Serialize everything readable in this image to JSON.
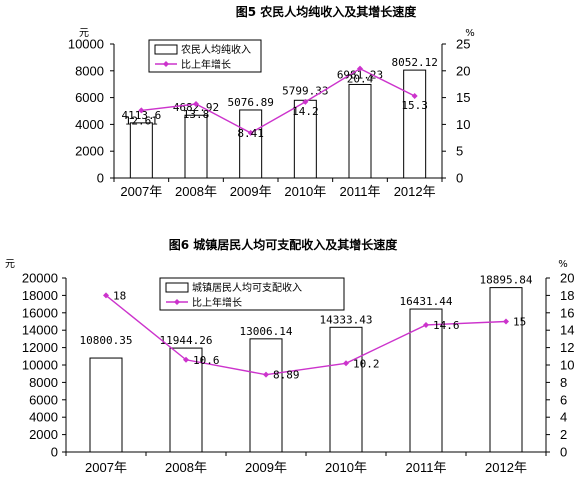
{
  "chart_data": [
    {
      "type": "bar",
      "title": "图5  农民人均纯收入及其增长速度",
      "y_unit": "元",
      "y2_unit": "%",
      "categories": [
        "2007年",
        "2008年",
        "2009年",
        "2010年",
        "2011年",
        "2012年"
      ],
      "ylim": [
        0,
        10000
      ],
      "y_ticks": [
        0,
        2000,
        4000,
        6000,
        8000,
        10000
      ],
      "y2lim": [
        0,
        25
      ],
      "y2_ticks": [
        0,
        5,
        10,
        15,
        20,
        25
      ],
      "series": [
        {
          "name": "农民人均纯收入",
          "type": "bar",
          "values": [
            4113.6,
            4682.92,
            5076.89,
            5799.33,
            6981.23,
            8052.12
          ],
          "labels": [
            "4113.6",
            "4682.92",
            "5076.89",
            "5799.33",
            "6981.23",
            "8052.12"
          ]
        },
        {
          "name": "比上年增长",
          "type": "line",
          "axis": "right",
          "values": [
            12.61,
            13.8,
            8.41,
            14.2,
            20.4,
            15.3
          ],
          "labels": [
            "12.61",
            "13.8",
            "8.41",
            "14.2",
            "20.4",
            "15.3"
          ]
        }
      ],
      "legend": "top-left",
      "grid": false
    },
    {
      "type": "bar",
      "title": "图6  城镇居民人均可支配收入及其增长速度",
      "y_unit": "元",
      "y2_unit": "%",
      "categories": [
        "2007年",
        "2008年",
        "2009年",
        "2010年",
        "2011年",
        "2012年"
      ],
      "ylim": [
        0,
        20000
      ],
      "y_ticks": [
        0,
        2000,
        4000,
        6000,
        8000,
        10000,
        12000,
        14000,
        16000,
        18000,
        20000
      ],
      "y2lim": [
        0,
        20
      ],
      "y2_ticks": [
        0,
        2,
        4,
        6,
        8,
        10,
        12,
        14,
        16,
        18,
        20
      ],
      "series": [
        {
          "name": "城镇居民人均可支配收入",
          "type": "bar",
          "values": [
            10800.35,
            11944.26,
            13006.14,
            14333.43,
            16431.44,
            18895.84
          ],
          "labels": [
            "10800.35",
            "11944.26",
            "13006.14",
            "14333.43",
            "16431.44",
            "18895.84"
          ]
        },
        {
          "name": "比上年增长",
          "type": "line",
          "axis": "right",
          "values": [
            18,
            10.6,
            8.89,
            10.2,
            14.6,
            15
          ],
          "labels": [
            "18",
            "10.6",
            "8.89",
            "10.2",
            "14.6",
            "15"
          ]
        }
      ],
      "legend": "top-left",
      "grid": false
    }
  ],
  "colors": {
    "bar_fill": "#ffffff",
    "bar_stroke": "#000000",
    "line": "#cc33cc",
    "axis": "#000000"
  }
}
